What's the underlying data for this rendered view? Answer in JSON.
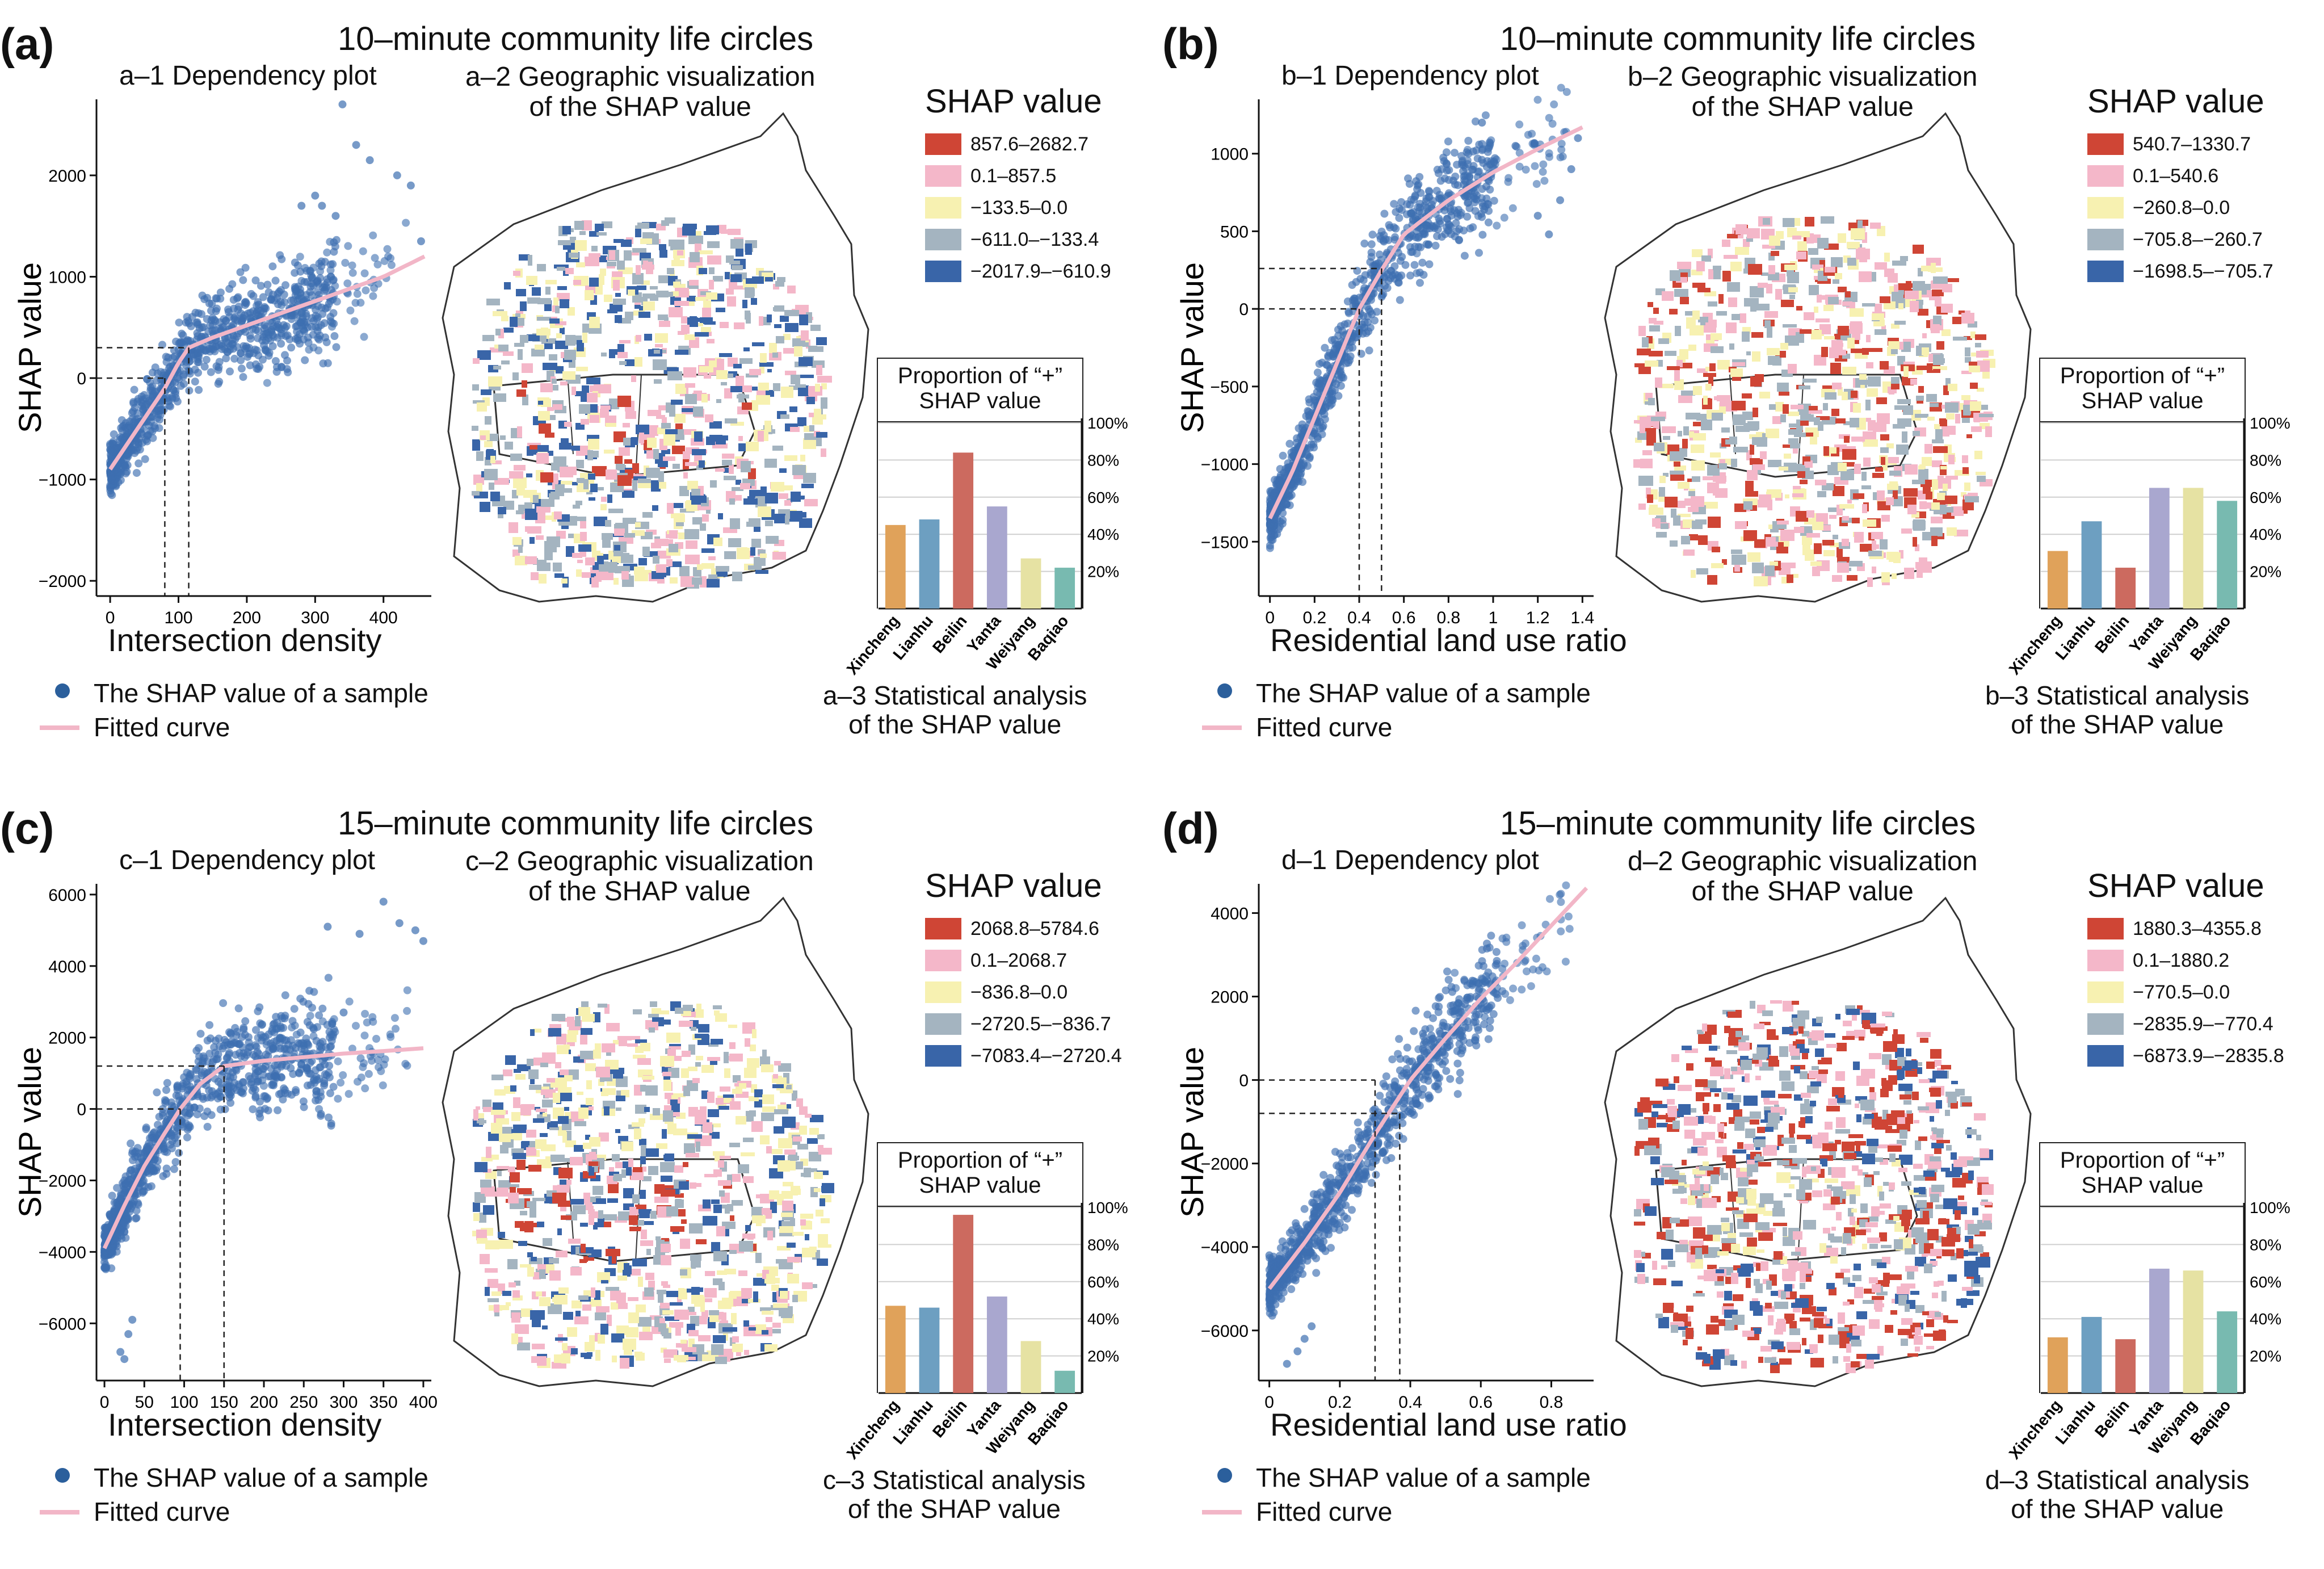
{
  "figure": {
    "common": {
      "scatter_legend": "The SHAP value of a sample",
      "curve_legend": "Fitted curve",
      "ylabel": "SHAP value",
      "shap_legend_title": "SHAP value",
      "proportion_title_1": "Proportion of “+”",
      "proportion_title_2": "SHAP value",
      "districts": [
        "Xincheng",
        "Lianhu",
        "Beilin",
        "Yanta",
        "Weiyang",
        "Baqiao"
      ],
      "pct_ticks": [
        "20%",
        "40%",
        "60%",
        "80%",
        "100%"
      ]
    },
    "panels": [
      {
        "letter": "(a)",
        "title": "10–minute community life circles",
        "dep_title": "a–1 Dependency plot",
        "geo_title_1": "a–2 Geographic visualization",
        "geo_title_2": "of the SHAP value",
        "stat_title_1": "a–3 Statistical analysis",
        "stat_title_2": "of the SHAP value",
        "xlabel": "Intersection density",
        "legend": [
          "857.6–2682.7",
          "0.1–857.5",
          "−133.5–0.0",
          "−611.0–−133.4",
          "−2017.9–−610.9"
        ]
      },
      {
        "letter": "(b)",
        "title": "10–minute community life circles",
        "dep_title": "b–1 Dependency plot",
        "geo_title_1": "b–2 Geographic visualization",
        "geo_title_2": "of the SHAP value",
        "stat_title_1": "b–3 Statistical analysis",
        "stat_title_2": "of the SHAP value",
        "xlabel": "Residential land use ratio",
        "legend": [
          "540.7–1330.7",
          "0.1–540.6",
          "−260.8–0.0",
          "−705.8–−260.7",
          "−1698.5–−705.7"
        ]
      },
      {
        "letter": "(c)",
        "title": "15–minute community life circles",
        "dep_title": "c–1 Dependency plot",
        "geo_title_1": "c–2 Geographic visualization",
        "geo_title_2": "of the SHAP value",
        "stat_title_1": "c–3 Statistical analysis",
        "stat_title_2": "of the SHAP value",
        "xlabel": "Intersection density",
        "legend": [
          "2068.8–5784.6",
          "0.1–2068.7",
          "−836.8–0.0",
          "−2720.5–−836.7",
          "−7083.4–−2720.4"
        ]
      },
      {
        "letter": "(d)",
        "title": "15–minute community life circles",
        "dep_title": "d–1 Dependency plot",
        "geo_title_1": "d–2 Geographic visualization",
        "geo_title_2": "of the SHAP value",
        "stat_title_1": "d–3 Statistical analysis",
        "stat_title_2": "of the SHAP value",
        "xlabel": "Residential land use ratio",
        "legend": [
          "1880.3–4355.8",
          "0.1–1880.2",
          "−770.5–0.0",
          "−2835.9–−770.4",
          "−6873.9–−2835.8"
        ]
      }
    ]
  },
  "colors": {
    "scatter": "#3d6fb0",
    "curve": "#f2b6c7",
    "legend": [
      "#cf4535",
      "#f4b7c9",
      "#f7f1b1",
      "#a4b4c0",
      "#3965a8"
    ],
    "bars": [
      "#e0a25a",
      "#6d9fc1",
      "#cc6a5f",
      "#a9a7cf",
      "#e6e2a3",
      "#78bab0"
    ]
  },
  "chart_data": [
    {
      "type": "scatter",
      "panel": "a",
      "title": "a–1 Dependency plot",
      "xlabel": "Intersection density",
      "ylabel": "SHAP value",
      "xlim": [
        -20,
        470
      ],
      "ylim": [
        -2150,
        2750
      ],
      "xticks": [
        0,
        100,
        200,
        300,
        400
      ],
      "yticks": [
        -2000,
        -1000,
        0,
        1000,
        2000
      ],
      "fitted_curve": {
        "x": [
          0,
          20,
          40,
          60,
          80,
          100,
          115,
          150,
          200,
          250,
          300,
          350,
          400,
          460
        ],
        "y": [
          -900,
          -700,
          -500,
          -300,
          -100,
          150,
          300,
          400,
          520,
          640,
          760,
          880,
          1000,
          1200
        ]
      },
      "reference_lines": {
        "x": [
          80,
          115
        ],
        "y": [
          0,
          300
        ]
      },
      "band_width": 300,
      "outliers": {
        "x": [
          340,
          360,
          380,
          420,
          440,
          455,
          300,
          310,
          330,
          280
        ],
        "y": [
          2700,
          2300,
          2150,
          2000,
          1900,
          1350,
          1800,
          1700,
          1600,
          1700
        ]
      }
    },
    {
      "type": "bar",
      "panel": "a",
      "title": "Proportion of “+” SHAP value",
      "categories": [
        "Xincheng",
        "Lianhu",
        "Beilin",
        "Yanta",
        "Weiyang",
        "Baqiao"
      ],
      "values": [
        45,
        48,
        84,
        55,
        27,
        22
      ],
      "ylim": [
        0,
        100
      ],
      "unit": "%"
    },
    {
      "type": "scatter",
      "panel": "b",
      "title": "b–1 Dependency plot",
      "xlabel": "Residential land use ratio",
      "ylabel": "SHAP value",
      "xlim": [
        -0.05,
        1.45
      ],
      "ylim": [
        -1850,
        1350
      ],
      "xticks": [
        0,
        0.2,
        0.4,
        0.6,
        0.8,
        1.0,
        1.2,
        1.4
      ],
      "yticks": [
        -1500,
        -1000,
        -500,
        0,
        500,
        1000
      ],
      "fitted_curve": {
        "x": [
          0,
          0.1,
          0.2,
          0.3,
          0.4,
          0.5,
          0.6,
          0.8,
          1.0,
          1.2,
          1.4
        ],
        "y": [
          -1350,
          -1050,
          -700,
          -350,
          0,
          250,
          480,
          700,
          880,
          1030,
          1170
        ]
      },
      "reference_lines": {
        "x": [
          0.4,
          0.5
        ],
        "y": [
          0,
          260
        ]
      },
      "band_width": 200,
      "outliers": {
        "x": [
          1.25,
          1.35,
          1.38,
          1.3,
          1.2,
          0.95,
          1.1
        ],
        "y": [
          480,
          900,
          1100,
          700,
          600,
          1200,
          1050
        ]
      }
    },
    {
      "type": "bar",
      "panel": "b",
      "title": "Proportion of “+” SHAP value",
      "categories": [
        "Xincheng",
        "Lianhu",
        "Beilin",
        "Yanta",
        "Weiyang",
        "Baqiao"
      ],
      "values": [
        31,
        47,
        22,
        65,
        65,
        58
      ],
      "ylim": [
        0,
        100
      ],
      "unit": "%"
    },
    {
      "type": "scatter",
      "panel": "c",
      "title": "c–1 Dependency plot",
      "xlabel": "Intersection density",
      "ylabel": "SHAP value",
      "xlim": [
        -10,
        410
      ],
      "ylim": [
        -7600,
        6300
      ],
      "xticks": [
        0,
        50,
        100,
        150,
        200,
        250,
        300,
        350,
        400
      ],
      "yticks": [
        -6000,
        -4000,
        -2000,
        0,
        2000,
        4000,
        6000
      ],
      "fitted_curve": {
        "x": [
          0,
          25,
          50,
          75,
          95,
          120,
          150,
          200,
          250,
          300,
          350,
          400
        ],
        "y": [
          -3900,
          -2700,
          -1600,
          -700,
          0,
          700,
          1200,
          1350,
          1450,
          1550,
          1620,
          1700
        ]
      },
      "reference_lines": {
        "x": [
          95,
          150
        ],
        "y": [
          0,
          1200
        ]
      },
      "band_width": 900,
      "outliers": {
        "x": [
          20,
          25,
          30,
          35,
          350,
          370,
          390,
          400,
          320,
          300,
          280
        ],
        "y": [
          -6800,
          -7000,
          -6300,
          -5900,
          5800,
          5200,
          5000,
          4700,
          4900,
          2700,
          5100
        ]
      }
    },
    {
      "type": "bar",
      "panel": "c",
      "title": "Proportion of “+” SHAP value",
      "categories": [
        "Xincheng",
        "Lianhu",
        "Beilin",
        "Yanta",
        "Weiyang",
        "Baqiao"
      ],
      "values": [
        47,
        46,
        96,
        52,
        28,
        12
      ],
      "ylim": [
        0,
        100
      ],
      "unit": "%"
    },
    {
      "type": "scatter",
      "panel": "d",
      "title": "d–1 Dependency plot",
      "xlabel": "Residential land use ratio",
      "ylabel": "SHAP value",
      "xlim": [
        -0.03,
        0.92
      ],
      "ylim": [
        -7200,
        4700
      ],
      "xticks": [
        0,
        0.2,
        0.4,
        0.6,
        0.8
      ],
      "yticks": [
        -6000,
        -4000,
        -2000,
        0,
        2000,
        4000
      ],
      "fitted_curve": {
        "x": [
          0,
          0.1,
          0.2,
          0.3,
          0.4,
          0.5,
          0.6,
          0.7,
          0.8,
          0.9
        ],
        "y": [
          -5000,
          -3900,
          -2700,
          -1300,
          0,
          1000,
          1950,
          2800,
          3700,
          4600
        ]
      },
      "reference_lines": {
        "x": [
          0.3,
          0.37
        ],
        "y": [
          0,
          -800
        ]
      },
      "band_width": 700,
      "outliers": {
        "x": [
          0.05,
          0.08,
          0.1,
          0.12,
          0.0
        ],
        "y": [
          -6800,
          -6500,
          -6200,
          -5900,
          -4200
        ]
      }
    },
    {
      "type": "bar",
      "panel": "d",
      "title": "Proportion of “+” SHAP value",
      "categories": [
        "Xincheng",
        "Lianhu",
        "Beilin",
        "Yanta",
        "Weiyang",
        "Baqiao"
      ],
      "values": [
        30,
        41,
        29,
        67,
        66,
        44
      ],
      "ylim": [
        0,
        100
      ],
      "unit": "%"
    }
  ]
}
